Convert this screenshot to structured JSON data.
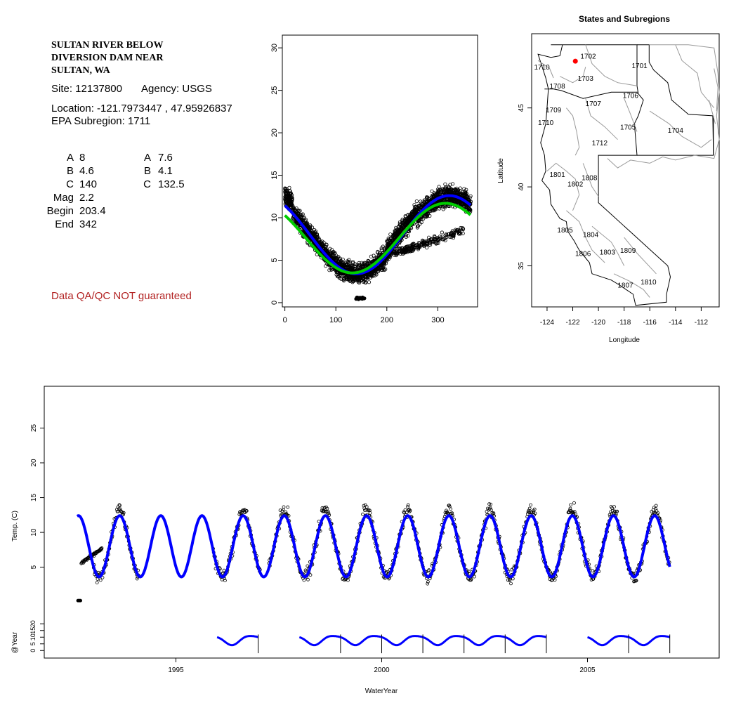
{
  "info": {
    "title_lines": [
      "SULTAN RIVER BELOW",
      "DIVERSION DAM NEAR",
      "SULTAN, WA"
    ],
    "site": "Site: 12137800",
    "agency": "Agency: USGS",
    "location": "Location: -121.7973447 , 47.95926837",
    "subregion": "EPA Subregion: 1711",
    "params_left": [
      {
        "label": "A",
        "value": "8"
      },
      {
        "label": "B",
        "value": "4.6"
      },
      {
        "label": "C",
        "value": "140"
      },
      {
        "label": "Mag",
        "value": "2.2"
      },
      {
        "label": "Begin",
        "value": "203.4"
      },
      {
        "label": "End",
        "value": "342"
      }
    ],
    "params_right": [
      {
        "label": "A",
        "value": "7.6"
      },
      {
        "label": "B",
        "value": "4.1"
      },
      {
        "label": "C",
        "value": "132.5"
      }
    ],
    "disclaimer": "Data QA/QC NOT guaranteed"
  },
  "chart_data": [
    {
      "type": "scatter",
      "title": "",
      "xlabel": "",
      "ylabel": "",
      "xlim": [
        -5,
        378
      ],
      "ylim": [
        -0.5,
        31.5
      ],
      "xticks": [
        0,
        100,
        200,
        300
      ],
      "yticks": [
        0,
        5,
        10,
        15,
        20,
        25,
        30
      ],
      "fit_curves": [
        {
          "color": "#0000ff",
          "A": 8,
          "B": 4.6,
          "C": 140
        },
        {
          "color": "#00cc00",
          "A": 7.6,
          "B": 4.1,
          "C": 132.5
        }
      ],
      "points_sample": [
        {
          "x": 0,
          "y": 12.5
        },
        {
          "x": 10,
          "y": 12.0
        },
        {
          "x": 30,
          "y": 10.5
        },
        {
          "x": 60,
          "y": 7.5
        },
        {
          "x": 90,
          "y": 5.0
        },
        {
          "x": 120,
          "y": 3.8
        },
        {
          "x": 140,
          "y": 0.4
        },
        {
          "x": 150,
          "y": 0.5
        },
        {
          "x": 180,
          "y": 4.5
        },
        {
          "x": 230,
          "y": 8.0
        },
        {
          "x": 270,
          "y": 10.5
        },
        {
          "x": 300,
          "y": 7.5
        },
        {
          "x": 330,
          "y": 14.5
        },
        {
          "x": 360,
          "y": 12.0
        }
      ]
    },
    {
      "type": "map",
      "title": "States and Subregions",
      "xlabel": "Longitude",
      "ylabel": "Latitude",
      "xlim": [
        -125.2,
        -110.6
      ],
      "ylim": [
        32.4,
        49.7
      ],
      "xticks": [
        -124,
        -122,
        -120,
        -118,
        -116,
        -114,
        -112
      ],
      "yticks": [
        35,
        40,
        45
      ],
      "site_marker": {
        "lon": -121.7973447,
        "lat": 47.95926837,
        "color": "#ff0000"
      },
      "region_labels": [
        {
          "text": "1702",
          "lon": -120.8,
          "lat": 48.3
        },
        {
          "text": "1701",
          "lon": -116.8,
          "lat": 47.7
        },
        {
          "text": "1710",
          "lon": -124.4,
          "lat": 47.6
        },
        {
          "text": "1703",
          "lon": -121.0,
          "lat": 46.9
        },
        {
          "text": "1708",
          "lon": -123.2,
          "lat": 46.4
        },
        {
          "text": "1706",
          "lon": -117.5,
          "lat": 45.8
        },
        {
          "text": "1707",
          "lon": -120.4,
          "lat": 45.3
        },
        {
          "text": "1709",
          "lon": -123.5,
          "lat": 44.9
        },
        {
          "text": "1710",
          "lon": -124.1,
          "lat": 44.1
        },
        {
          "text": "1705",
          "lon": -117.7,
          "lat": 43.8
        },
        {
          "text": "1704",
          "lon": -114.0,
          "lat": 43.6
        },
        {
          "text": "1712",
          "lon": -119.9,
          "lat": 42.8
        },
        {
          "text": "1801",
          "lon": -123.2,
          "lat": 40.8
        },
        {
          "text": "1808",
          "lon": -120.7,
          "lat": 40.6
        },
        {
          "text": "1802",
          "lon": -121.8,
          "lat": 40.2
        },
        {
          "text": "1805",
          "lon": -122.6,
          "lat": 37.3
        },
        {
          "text": "1804",
          "lon": -120.6,
          "lat": 37.0
        },
        {
          "text": "1806",
          "lon": -121.2,
          "lat": 35.8
        },
        {
          "text": "1803",
          "lon": -119.3,
          "lat": 35.9
        },
        {
          "text": "1809",
          "lon": -117.7,
          "lat": 36.0
        },
        {
          "text": "1810",
          "lon": -116.1,
          "lat": 34.0
        },
        {
          "text": "1807",
          "lon": -117.9,
          "lat": 33.8
        }
      ]
    },
    {
      "type": "line",
      "title": "",
      "xlabel": "WaterYear",
      "ylabel": "Temp. (C)",
      "ylabel2": "@Year",
      "xlim": [
        1991.8,
        2008.2
      ],
      "ylim": [
        -1.5,
        30.5
      ],
      "ylim2": [
        -3,
        28
      ],
      "xticks": [
        1995,
        2000,
        2005
      ],
      "yticks": [
        5,
        10,
        15,
        20,
        25
      ],
      "yticks2": [
        0,
        5,
        10,
        15,
        20
      ],
      "series": [
        {
          "name": "",
          "color": "#0000ff",
          "mean": 8.0,
          "amplitude": 4.4,
          "x_start": 1992.6,
          "x_end": 2007.0
        }
      ],
      "yearly_segments": [
        [
          1996,
          1997
        ],
        [
          1998,
          1999
        ],
        [
          1999,
          2000
        ],
        [
          2000,
          2001
        ],
        [
          2001,
          2002
        ],
        [
          2002,
          2003
        ],
        [
          2003,
          2004
        ],
        [
          2005,
          2006
        ],
        [
          2006,
          2007
        ]
      ]
    }
  ]
}
